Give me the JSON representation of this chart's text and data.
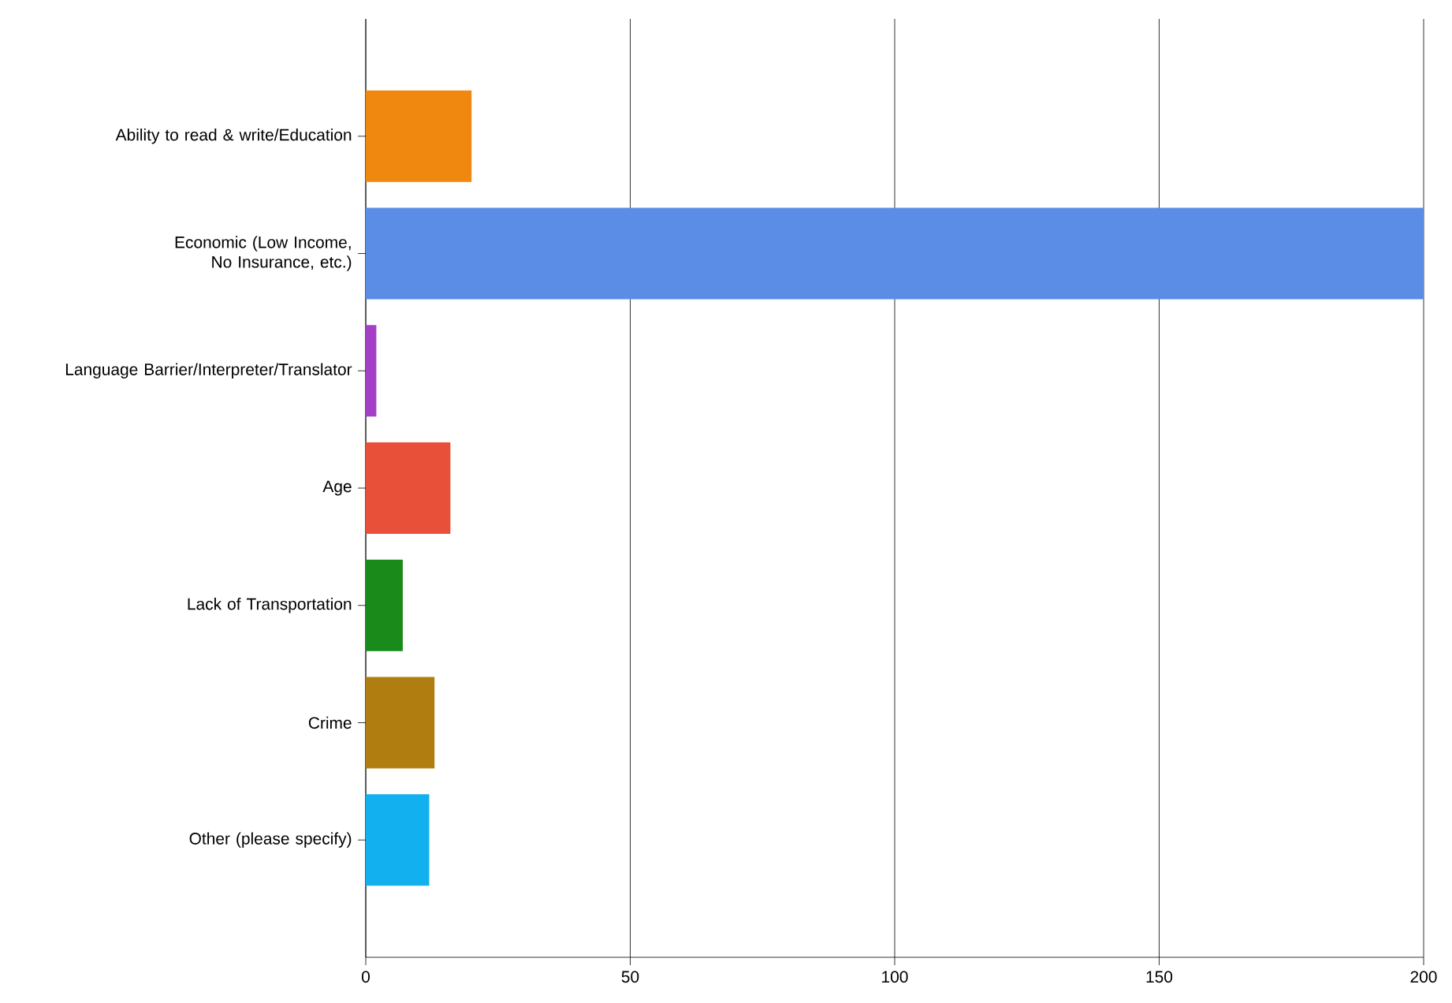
{
  "chart_data": {
    "type": "bar",
    "orientation": "horizontal",
    "categories": [
      "Ability to read & write/Education",
      "Economic (Low Income, No Insurance, etc.)",
      "Language Barrier/Interpreter/Translator",
      "Age",
      "Lack of Transportation",
      "Crime",
      "Other (please specify)"
    ],
    "values": [
      20,
      200,
      2,
      16,
      7,
      13,
      12
    ],
    "colors": [
      "#f0870f",
      "#5b8de6",
      "#a43fc8",
      "#e8503a",
      "#1a8a1a",
      "#b07e10",
      "#12b0ee"
    ],
    "xlim": [
      0,
      200
    ],
    "xticks": [
      0,
      50,
      100,
      150,
      200
    ],
    "grid": "x"
  }
}
